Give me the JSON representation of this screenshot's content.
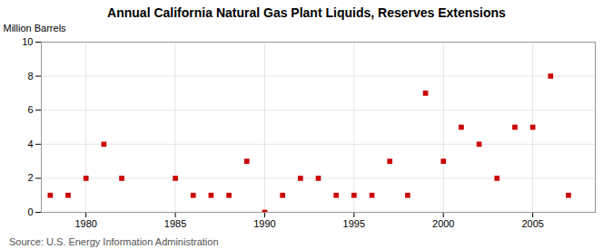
{
  "chart_data": {
    "type": "scatter",
    "title": "Annual California Natural Gas Plant Liquids, Reserves Extensions",
    "ylabel": "Million Barrels",
    "source": "Source: U.S. Energy Information Administration",
    "color": "#cc0000",
    "marker": "square",
    "grid": true,
    "xlim": [
      1977.5,
      2008.5
    ],
    "ylim": [
      0,
      10
    ],
    "xticks": [
      1980,
      1985,
      1990,
      1995,
      2000,
      2005
    ],
    "yticks": [
      0,
      2,
      4,
      6,
      8,
      10
    ],
    "x": [
      1978,
      1979,
      1980,
      1981,
      1982,
      1985,
      1986,
      1987,
      1988,
      1989,
      1990,
      1991,
      1992,
      1993,
      1994,
      1995,
      1996,
      1997,
      1998,
      1999,
      2000,
      2001,
      2002,
      2003,
      2004,
      2005,
      2006,
      2007
    ],
    "values": [
      1,
      1,
      2,
      4,
      2,
      2,
      1,
      1,
      1,
      3,
      0,
      1,
      2,
      2,
      1,
      1,
      1,
      3,
      1,
      7,
      3,
      5,
      4,
      2,
      5,
      5,
      8,
      1
    ]
  }
}
